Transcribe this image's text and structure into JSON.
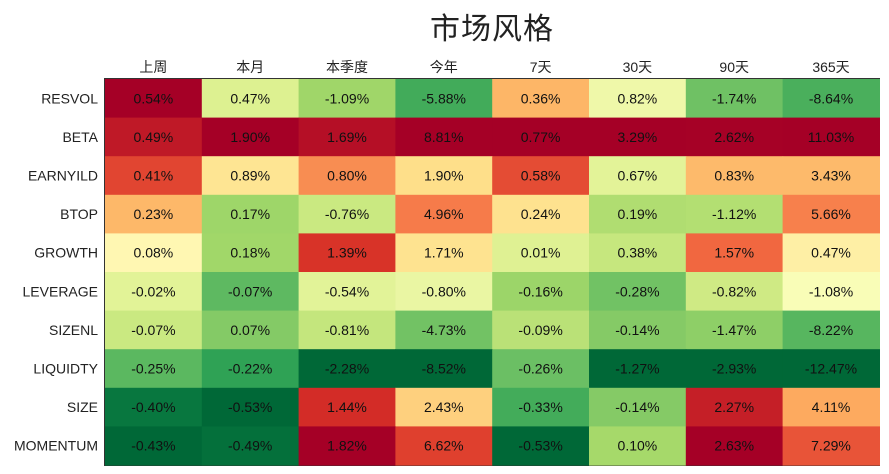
{
  "chart_data": {
    "type": "heatmap",
    "title": "市场风格",
    "xlabel": "",
    "ylabel": "",
    "columns": [
      "上周",
      "本月",
      "本季度",
      "今年",
      "7天",
      "30天",
      "90天",
      "365天"
    ],
    "rows": [
      "RESVOL",
      "BETA",
      "EARNYILD",
      "BTOP",
      "GROWTH",
      "LEVERAGE",
      "SIZENL",
      "LIQUIDTY",
      "SIZE",
      "MOMENTUM"
    ],
    "values": [
      [
        0.54,
        0.47,
        -1.09,
        -5.88,
        0.36,
        0.82,
        -1.74,
        -8.64
      ],
      [
        0.49,
        1.9,
        1.69,
        8.81,
        0.77,
        3.29,
        2.62,
        11.03
      ],
      [
        0.41,
        0.89,
        0.8,
        1.9,
        0.58,
        0.67,
        0.83,
        3.43
      ],
      [
        0.23,
        0.17,
        -0.76,
        4.96,
        0.24,
        0.19,
        -1.12,
        5.66
      ],
      [
        0.08,
        0.18,
        1.39,
        1.71,
        0.01,
        0.38,
        1.57,
        0.47
      ],
      [
        -0.02,
        -0.07,
        -0.54,
        -0.8,
        -0.16,
        -0.28,
        -0.82,
        -1.08
      ],
      [
        -0.07,
        0.07,
        -0.81,
        -4.73,
        -0.09,
        -0.14,
        -1.47,
        -8.22
      ],
      [
        -0.25,
        -0.22,
        -2.28,
        -8.52,
        -0.26,
        -1.27,
        -2.93,
        -12.47
      ],
      [
        -0.4,
        -0.53,
        1.44,
        2.43,
        -0.33,
        -0.14,
        2.27,
        4.11
      ],
      [
        -0.43,
        -0.49,
        1.82,
        6.62,
        -0.53,
        0.1,
        2.63,
        7.29
      ]
    ],
    "labels": [
      [
        "0.54%",
        "0.47%",
        "-1.09%",
        "-5.88%",
        "0.36%",
        "0.82%",
        "-1.74%",
        "-8.64%"
      ],
      [
        "0.49%",
        "1.90%",
        "1.69%",
        "8.81%",
        "0.77%",
        "3.29%",
        "2.62%",
        "11.03%"
      ],
      [
        "0.41%",
        "0.89%",
        "0.80%",
        "1.90%",
        "0.58%",
        "0.67%",
        "0.83%",
        "3.43%"
      ],
      [
        "0.23%",
        "0.17%",
        "-0.76%",
        "4.96%",
        "0.24%",
        "0.19%",
        "-1.12%",
        "5.66%"
      ],
      [
        "0.08%",
        "0.18%",
        "1.39%",
        "1.71%",
        "0.01%",
        "0.38%",
        "1.57%",
        "0.47%"
      ],
      [
        "-0.02%",
        "-0.07%",
        "-0.54%",
        "-0.80%",
        "-0.16%",
        "-0.28%",
        "-0.82%",
        "-1.08%"
      ],
      [
        "-0.07%",
        "0.07%",
        "-0.81%",
        "-4.73%",
        "-0.09%",
        "-0.14%",
        "-1.47%",
        "-8.22%"
      ],
      [
        "-0.25%",
        "-0.22%",
        "-2.28%",
        "-8.52%",
        "-0.26%",
        "-1.27%",
        "-2.93%",
        "-12.47%"
      ],
      [
        "-0.40%",
        "-0.53%",
        "1.44%",
        "2.43%",
        "-0.33%",
        "-0.14%",
        "2.27%",
        "4.11%"
      ],
      [
        "-0.43%",
        "-0.49%",
        "1.82%",
        "6.62%",
        "-0.53%",
        "0.10%",
        "2.63%",
        "7.29%"
      ]
    ],
    "colorscale": "RdYlGn reversed, normalized per column (max = dark red, min = dark green)",
    "colors": {
      "low": "#006837",
      "mid": "#ffffbf",
      "high": "#a50026"
    },
    "grid": false,
    "legend": "none"
  }
}
